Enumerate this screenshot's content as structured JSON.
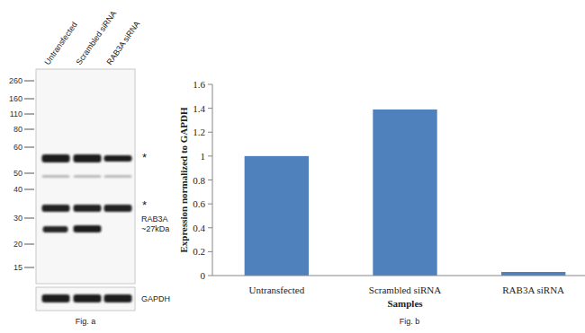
{
  "chart_data": {
    "type": "bar",
    "y_label": "Expression normalized to GAPDH",
    "x_label": "Samples",
    "caption": "Fig. b",
    "categories": [
      "Untransfected",
      "Scrambled siRNA",
      "RAB3A siRNA"
    ],
    "values": [
      1.0,
      1.39,
      0.03
    ],
    "color": "#4f81bd",
    "ylim": [
      0,
      1.6
    ],
    "yticks": [
      0,
      0.2,
      0.4,
      0.6,
      0.8,
      1,
      1.2,
      1.4,
      1.6
    ],
    "grid": false
  },
  "blot": {
    "lanes": [
      "Untransfected",
      "Scrambled siRNA",
      "RAB3A siRNA"
    ],
    "markers_kda": [
      260,
      160,
      110,
      80,
      60,
      50,
      40,
      30,
      20,
      15
    ],
    "asterisks": [
      "*",
      "*"
    ],
    "band_label": [
      "RAB3A",
      "~27kDa"
    ],
    "loading_control": "GAPDH",
    "caption": "Fig. a"
  }
}
